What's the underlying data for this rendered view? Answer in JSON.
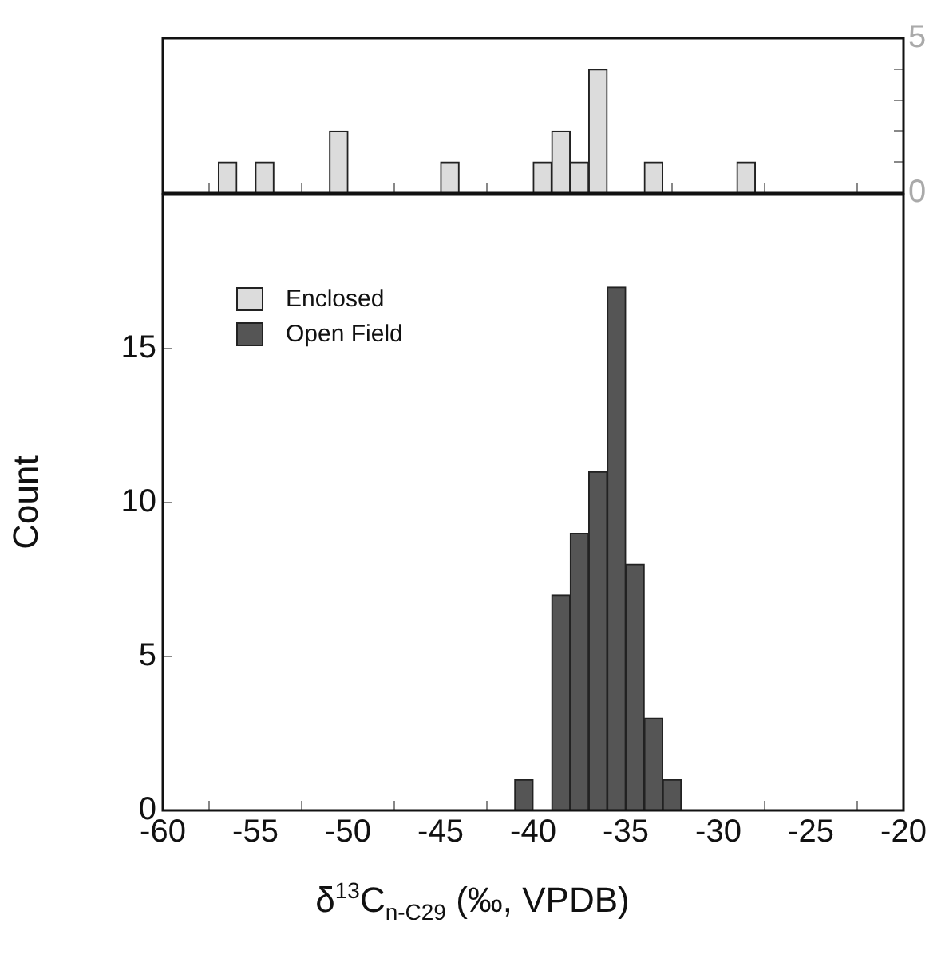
{
  "chart_data": [
    {
      "type": "histogram",
      "tick_labels": "y",
      "xlim": [
        -60,
        -20
      ],
      "xticks": [
        -60,
        -55,
        -50,
        -45,
        -40,
        -35,
        -30,
        -25,
        -20
      ],
      "ylim": [
        0,
        5
      ],
      "yticks": [
        0,
        {
          "value": 1,
          "label": null
        },
        {
          "value": 2,
          "label": null
        },
        {
          "value": 3,
          "label": null
        },
        {
          "value": 4,
          "label": null
        },
        5
      ],
      "bins": [
        -57,
        -56,
        -55,
        -54,
        -53,
        -52,
        -51,
        -50,
        -49,
        -48,
        -47,
        -46,
        -45,
        -44,
        -43,
        -42,
        -41,
        -40,
        -39,
        -38,
        -37,
        -36,
        -35,
        -34,
        -33,
        -32,
        -31,
        -30,
        -29,
        -28
      ],
      "series": [
        {
          "name": "Enclosed",
          "color": "#dcdcdc",
          "values": [
            1,
            0,
            1,
            0,
            0,
            0,
            2,
            0,
            0,
            0,
            0,
            0,
            1,
            0,
            0,
            0,
            0,
            1,
            2,
            1,
            4,
            0,
            0,
            1,
            0,
            0,
            0,
            0,
            1
          ]
        }
      ]
    },
    {
      "type": "histogram",
      "xlabel": "δ$^{13}$C$_{n-C29}$ (‰, VPDB)",
      "ylabel": "Count",
      "legend": "top left",
      "xlim": [
        -60,
        -20
      ],
      "xticks": [
        -60,
        -55,
        -50,
        -45,
        -40,
        -35,
        -30,
        -25,
        -20
      ],
      "ylim": [
        0,
        20
      ],
      "yticks": [
        0,
        5,
        10,
        15
      ],
      "bins": [
        -41,
        -40,
        -39,
        -38,
        -37,
        -36,
        -35,
        -34,
        -33,
        -32
      ],
      "series": [
        {
          "name": "Open Field",
          "color": "#555555",
          "values": [
            1,
            0,
            7,
            9,
            11,
            17,
            8,
            3,
            1
          ]
        }
      ]
    }
  ]
}
